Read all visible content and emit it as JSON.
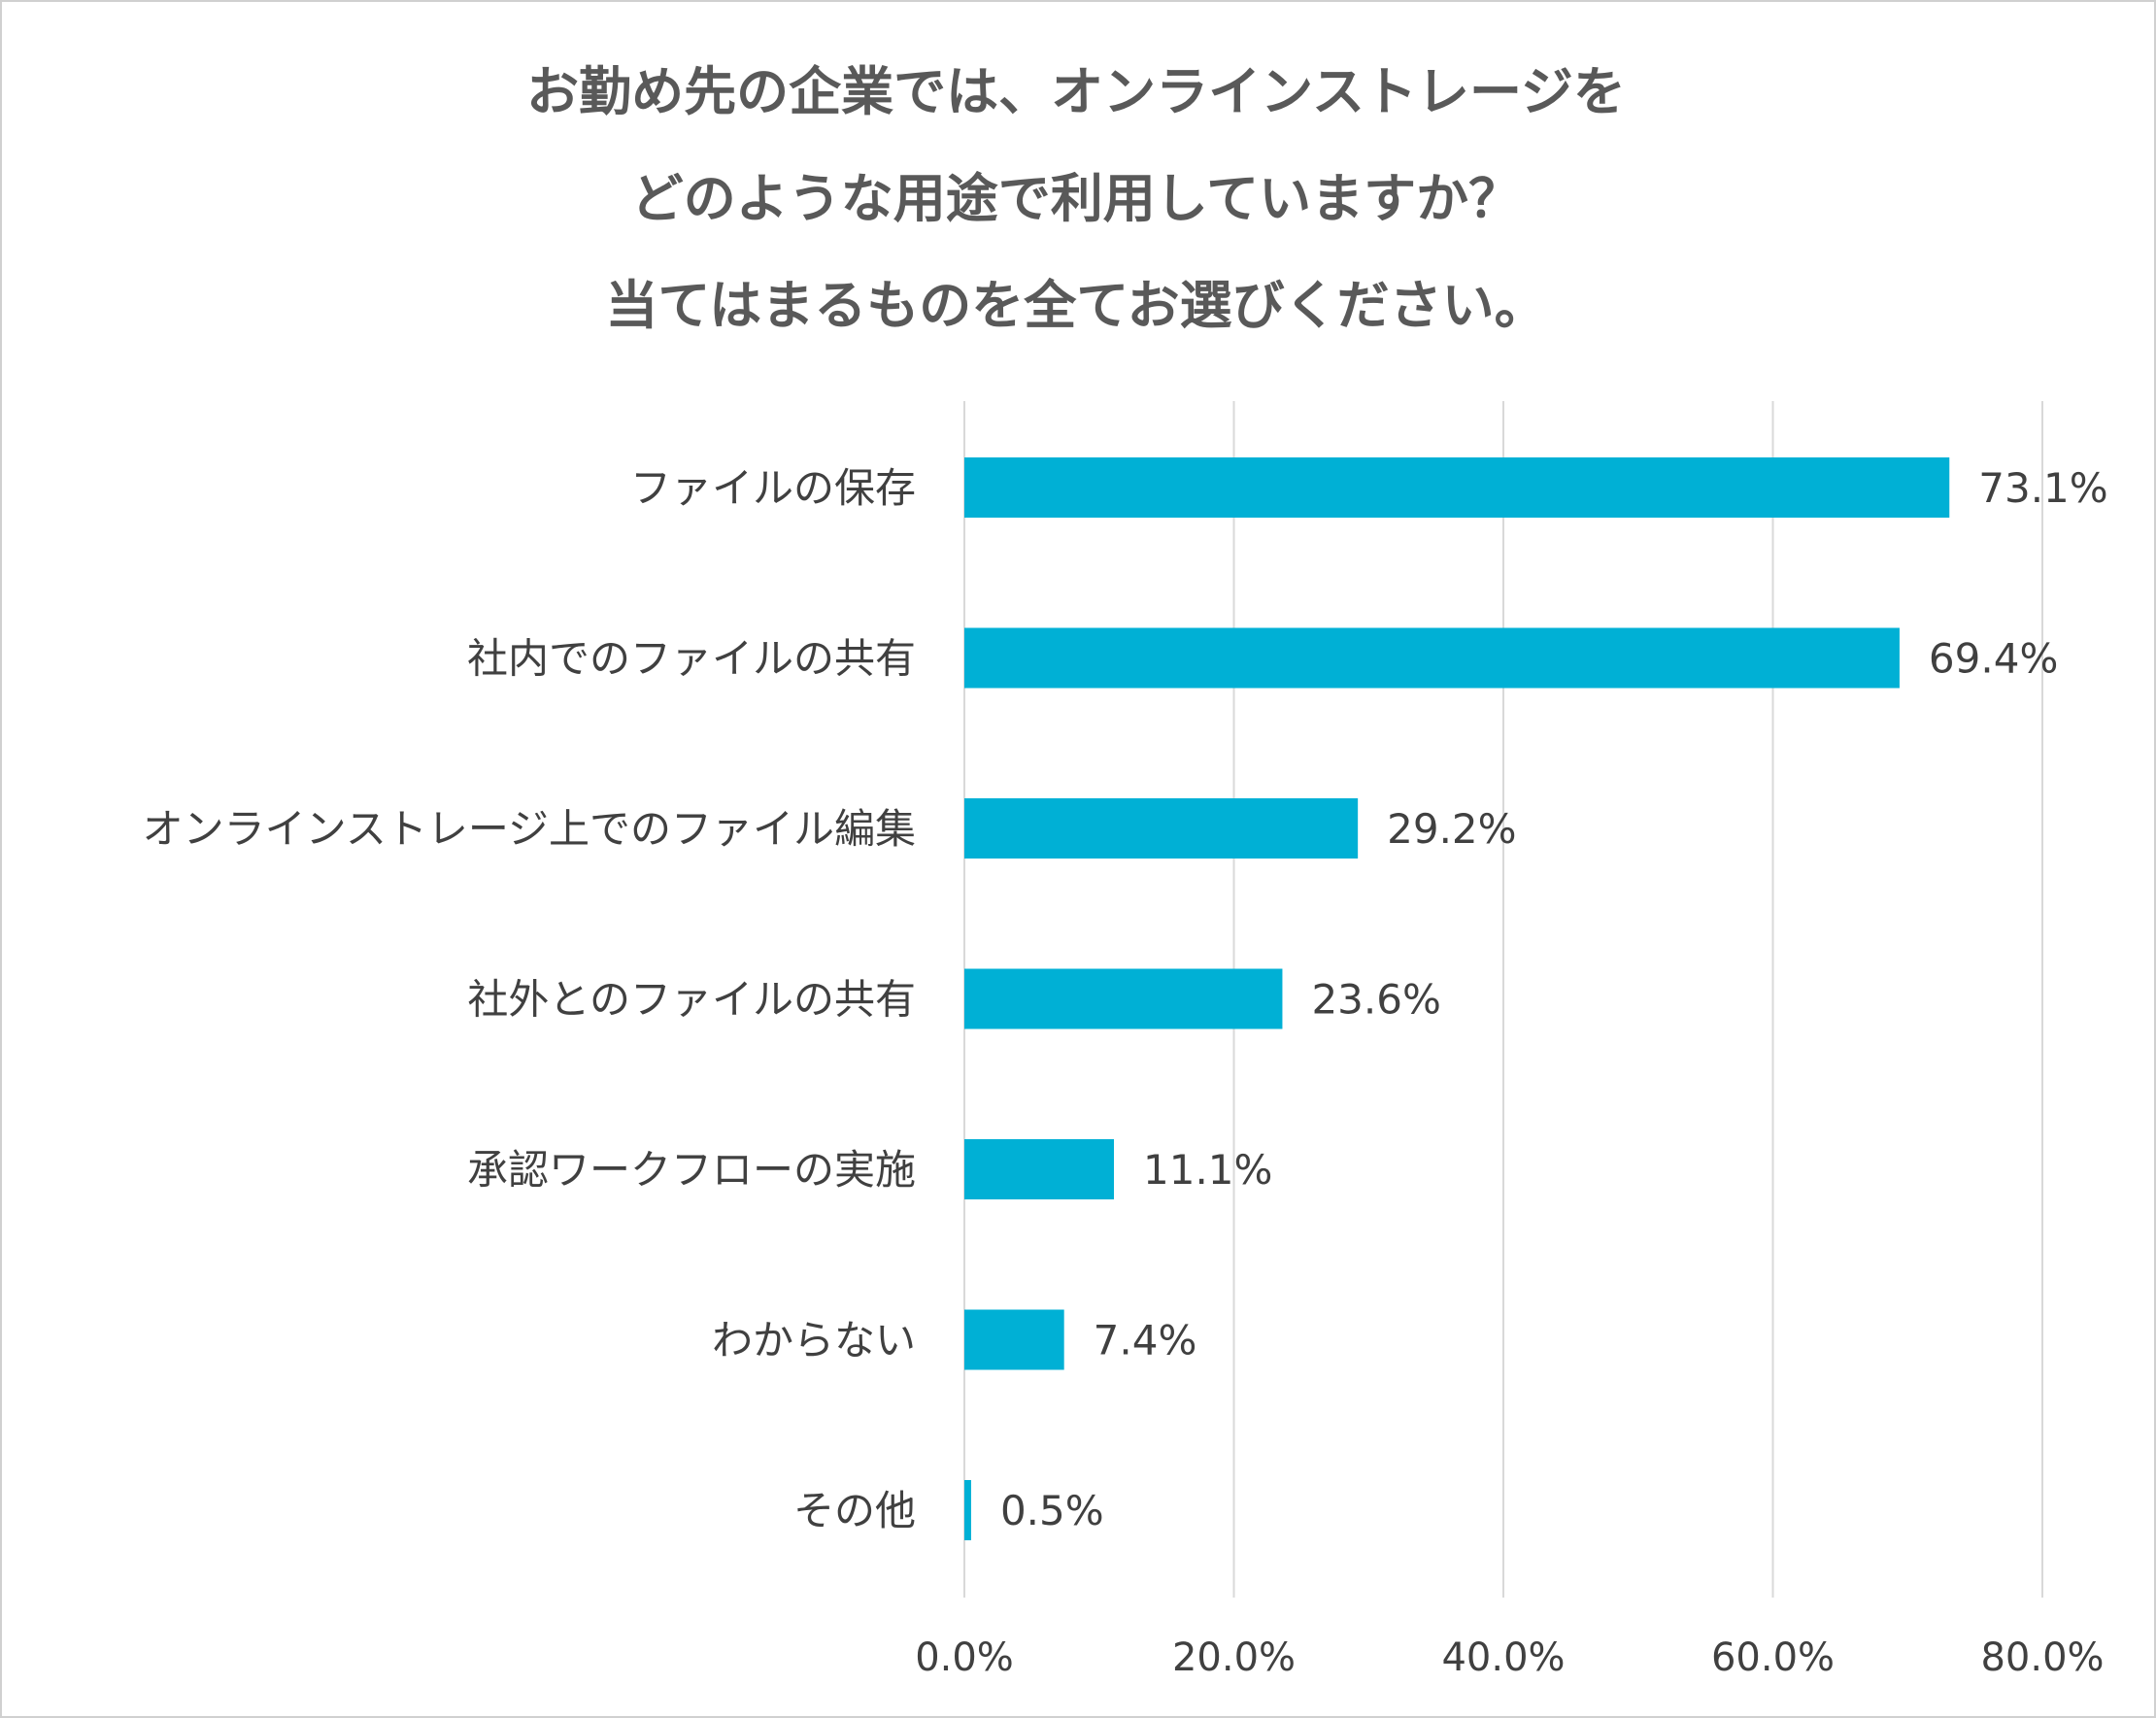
{
  "chart_data": {
    "type": "bar",
    "orientation": "horizontal",
    "title_lines": [
      "お勤め先の企業では、オンラインストレージを",
      "どのような用途で利用していますか？",
      "当てはまるものを全てお選びください。"
    ],
    "categories": [
      "ファイルの保存",
      "社内でのファイルの共有",
      "オンラインストレージ上でのファイル編集",
      "社外とのファイルの共有",
      "承認ワークフローの実施",
      "わからない",
      "その他"
    ],
    "values": [
      73.1,
      69.4,
      29.2,
      23.6,
      11.1,
      7.4,
      0.5
    ],
    "value_labels": [
      "73.1%",
      "69.4%",
      "29.2%",
      "23.6%",
      "11.1%",
      "7.4%",
      "0.5%"
    ],
    "xlim": [
      0,
      80
    ],
    "xticks": [
      0,
      20,
      40,
      60,
      80
    ],
    "xtick_labels": [
      "0.0%",
      "20.0%",
      "40.0%",
      "60.0%",
      "80.0%"
    ],
    "grid": true,
    "legend": false,
    "colors": {
      "bar": "#00b0d5",
      "grid": "#d9d9d9",
      "text": "#404040",
      "title": "#595959"
    }
  }
}
